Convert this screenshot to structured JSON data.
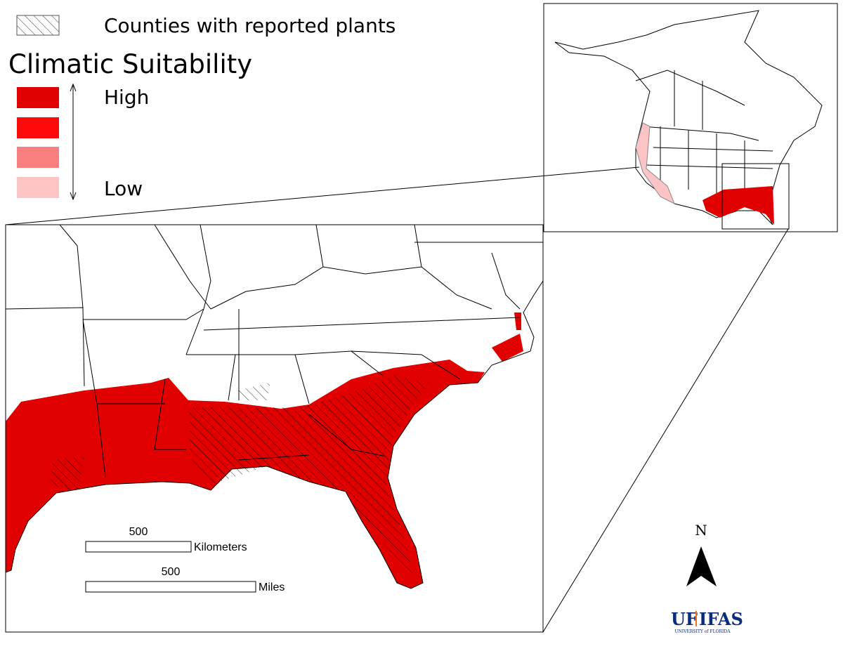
{
  "legend": {
    "hatch_label": "Counties with reported plants",
    "title": "Climatic Suitability",
    "high": "High",
    "low": "Low"
  },
  "scale_bar": {
    "km_value": 500,
    "km_unit": "Kilometers",
    "mi_value": 500,
    "mi_unit": "Miles"
  },
  "north_arrow": "N",
  "logo": {
    "uf": "UF",
    "ifas": "IFAS",
    "university": "UNIVERSITY of FLORIDA"
  }
}
